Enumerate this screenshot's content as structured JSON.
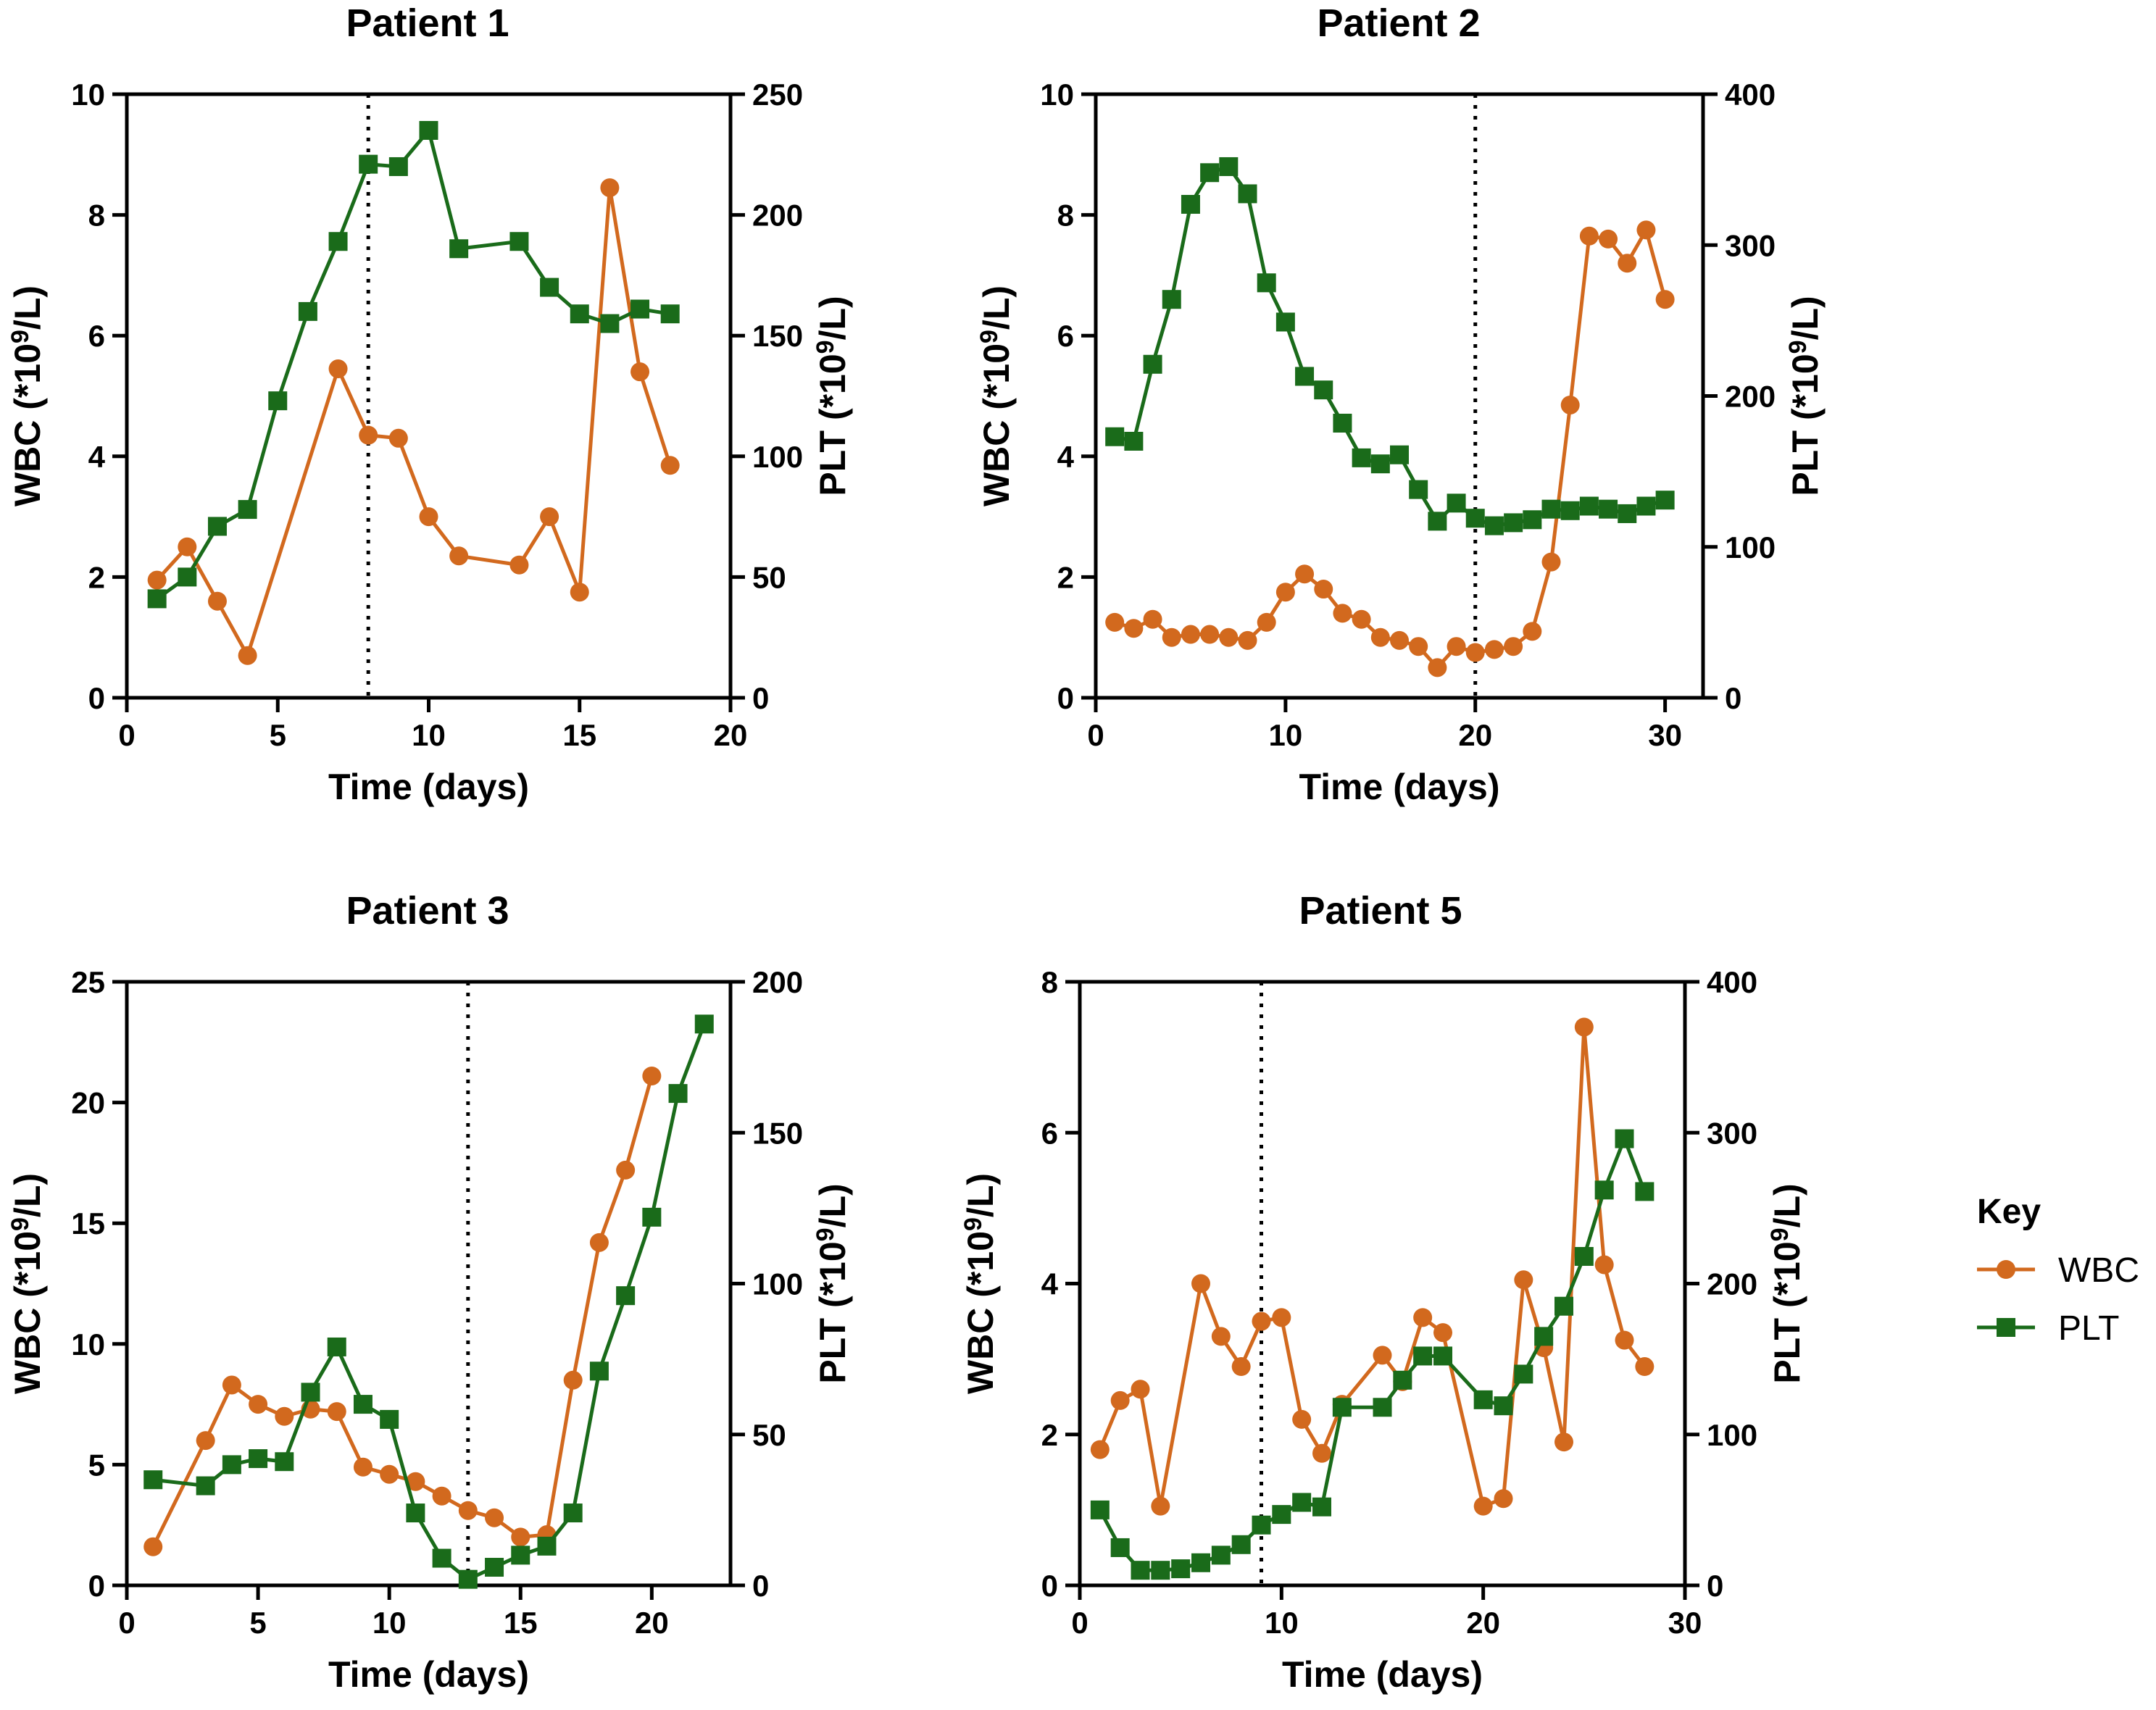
{
  "colors": {
    "wbc": "#D2691E",
    "plt": "#1A6B1A",
    "axis": "#000000"
  },
  "legend": {
    "title": "Key",
    "items": [
      {
        "name": "WBC",
        "marker": "circle",
        "color": "#D2691E"
      },
      {
        "name": "PLT",
        "marker": "square",
        "color": "#1A6B1A"
      }
    ]
  },
  "chart_data": [
    {
      "type": "line",
      "title": "Patient 1",
      "xlabel": "Time (days)",
      "ylabel_left": "WBC (*10^9/L)",
      "ylabel_right": "PLT (*10^9/L)",
      "xlim": [
        0,
        20
      ],
      "xticks": [
        0,
        5,
        10,
        15,
        20
      ],
      "ylim_left": [
        0,
        10
      ],
      "yticks_left": [
        0,
        2,
        4,
        6,
        8,
        10
      ],
      "ylim_right": [
        0,
        250
      ],
      "yticks_right": [
        0,
        50,
        100,
        150,
        200,
        250
      ],
      "vline_day": 8,
      "series": [
        {
          "name": "WBC",
          "axis": "left",
          "x": [
            1,
            2,
            3,
            4,
            7,
            8,
            9,
            10,
            11,
            13,
            14,
            15,
            16,
            17,
            18
          ],
          "values": [
            1.95,
            2.5,
            1.6,
            0.7,
            5.45,
            4.35,
            4.3,
            3.0,
            2.35,
            2.2,
            3.0,
            1.75,
            8.45,
            5.4,
            3.85
          ]
        },
        {
          "name": "PLT",
          "axis": "right",
          "x": [
            1,
            2,
            3,
            4,
            5,
            6,
            7,
            8,
            9,
            10,
            11,
            13,
            14,
            15,
            16,
            17,
            18
          ],
          "values": [
            41,
            50,
            71,
            78,
            123,
            160,
            189,
            221,
            220,
            235,
            186,
            189,
            170,
            159,
            155,
            161,
            159
          ]
        }
      ]
    },
    {
      "type": "line",
      "title": "Patient 2",
      "xlabel": "Time (days)",
      "ylabel_left": "WBC (*10^9/L)",
      "ylabel_right": "PLT (*10^9/L)",
      "xlim": [
        0,
        32
      ],
      "xticks": [
        0,
        10,
        20,
        30
      ],
      "ylim_left": [
        0,
        10
      ],
      "yticks_left": [
        0,
        2,
        4,
        6,
        8,
        10
      ],
      "ylim_right": [
        0,
        400
      ],
      "yticks_right": [
        0,
        100,
        200,
        300,
        400
      ],
      "vline_day": 20,
      "series": [
        {
          "name": "WBC",
          "axis": "left",
          "x": [
            1,
            2,
            3,
            4,
            5,
            6,
            7,
            8,
            9,
            10,
            11,
            12,
            13,
            14,
            15,
            16,
            17,
            18,
            19,
            20,
            21,
            22,
            23,
            24,
            25,
            26,
            27,
            28,
            29,
            30
          ],
          "values": [
            1.25,
            1.15,
            1.3,
            1.0,
            1.05,
            1.05,
            1.0,
            0.95,
            1.25,
            1.75,
            2.05,
            1.8,
            1.4,
            1.3,
            1.0,
            0.95,
            0.85,
            0.5,
            0.85,
            0.75,
            0.8,
            0.85,
            1.1,
            2.25,
            4.85,
            7.65,
            7.6,
            7.2,
            7.75,
            6.6
          ]
        },
        {
          "name": "PLT",
          "axis": "right",
          "x": [
            1,
            2,
            3,
            4,
            5,
            6,
            7,
            8,
            9,
            10,
            11,
            12,
            13,
            14,
            15,
            16,
            17,
            18,
            19,
            20,
            21,
            22,
            23,
            24,
            25,
            26,
            27,
            28,
            29,
            30
          ],
          "values": [
            173,
            170,
            221,
            264,
            327,
            348,
            352,
            334,
            275,
            249,
            213,
            204,
            182,
            159,
            155,
            161,
            138,
            117,
            129,
            119,
            114,
            116,
            118,
            125,
            124,
            127,
            125,
            122,
            127,
            131
          ]
        }
      ]
    },
    {
      "type": "line",
      "title": "Patient 3",
      "xlabel": "Time (days)",
      "ylabel_left": "WBC (*10^9/L)",
      "ylabel_right": "PLT (*10^9/L)",
      "xlim": [
        0,
        23
      ],
      "xticks": [
        0,
        5,
        10,
        15,
        20
      ],
      "ylim_left": [
        0,
        25
      ],
      "yticks_left": [
        0,
        5,
        10,
        15,
        20,
        25
      ],
      "ylim_right": [
        0,
        200
      ],
      "yticks_right": [
        0,
        50,
        100,
        150,
        200
      ],
      "vline_day": 13,
      "series": [
        {
          "name": "WBC",
          "axis": "left",
          "x": [
            1,
            3,
            4,
            5,
            6,
            7,
            8,
            9,
            10,
            11,
            12,
            13,
            14,
            15,
            16,
            17,
            18,
            19,
            20
          ],
          "values": [
            1.6,
            6.0,
            8.3,
            7.5,
            7.0,
            7.3,
            7.2,
            4.9,
            4.6,
            4.3,
            3.7,
            3.1,
            2.8,
            2.0,
            2.1,
            8.5,
            14.2,
            17.2,
            21.1
          ]
        },
        {
          "name": "PLT",
          "axis": "right",
          "x": [
            1,
            3,
            4,
            5,
            6,
            7,
            8,
            9,
            10,
            11,
            12,
            13,
            14,
            15,
            16,
            17,
            18,
            19,
            20,
            21,
            22
          ],
          "values": [
            35,
            33,
            40,
            42,
            41,
            64,
            79,
            60,
            55,
            24,
            9,
            2,
            6,
            10,
            13,
            24,
            71,
            96,
            122,
            163,
            186
          ]
        }
      ]
    },
    {
      "type": "line",
      "title": "Patient 5",
      "xlabel": "Time (days)",
      "ylabel_left": "WBC (*10^9/L)",
      "ylabel_right": "PLT (*10^9/L)",
      "xlim": [
        0,
        30
      ],
      "xticks": [
        0,
        10,
        20,
        30
      ],
      "ylim_left": [
        0,
        8
      ],
      "yticks_left": [
        0,
        2,
        4,
        6,
        8
      ],
      "ylim_right": [
        0,
        400
      ],
      "yticks_right": [
        0,
        100,
        200,
        300,
        400
      ],
      "vline_day": 9,
      "series": [
        {
          "name": "WBC",
          "axis": "left",
          "x": [
            1,
            2,
            3,
            4,
            6,
            7,
            8,
            9,
            10,
            11,
            12,
            13,
            15,
            16,
            17,
            18,
            20,
            21,
            22,
            23,
            24,
            25,
            26,
            27,
            28
          ],
          "values": [
            1.8,
            2.45,
            2.6,
            1.05,
            4.0,
            3.3,
            2.9,
            3.5,
            3.55,
            2.2,
            1.75,
            2.4,
            3.05,
            2.7,
            3.55,
            3.35,
            1.05,
            1.15,
            4.05,
            3.15,
            1.9,
            7.4,
            4.25,
            3.25,
            2.9
          ]
        },
        {
          "name": "PLT",
          "axis": "right",
          "x": [
            1,
            2,
            3,
            4,
            5,
            6,
            7,
            8,
            9,
            10,
            11,
            12,
            13,
            15,
            16,
            17,
            18,
            20,
            21,
            22,
            23,
            24,
            25,
            26,
            27,
            28
          ],
          "values": [
            50,
            25,
            10,
            10,
            11,
            15,
            20,
            27,
            40,
            47,
            55,
            52,
            118,
            118,
            136,
            152,
            152,
            123,
            119,
            140,
            165,
            185,
            218,
            262,
            296,
            261
          ]
        }
      ]
    }
  ]
}
